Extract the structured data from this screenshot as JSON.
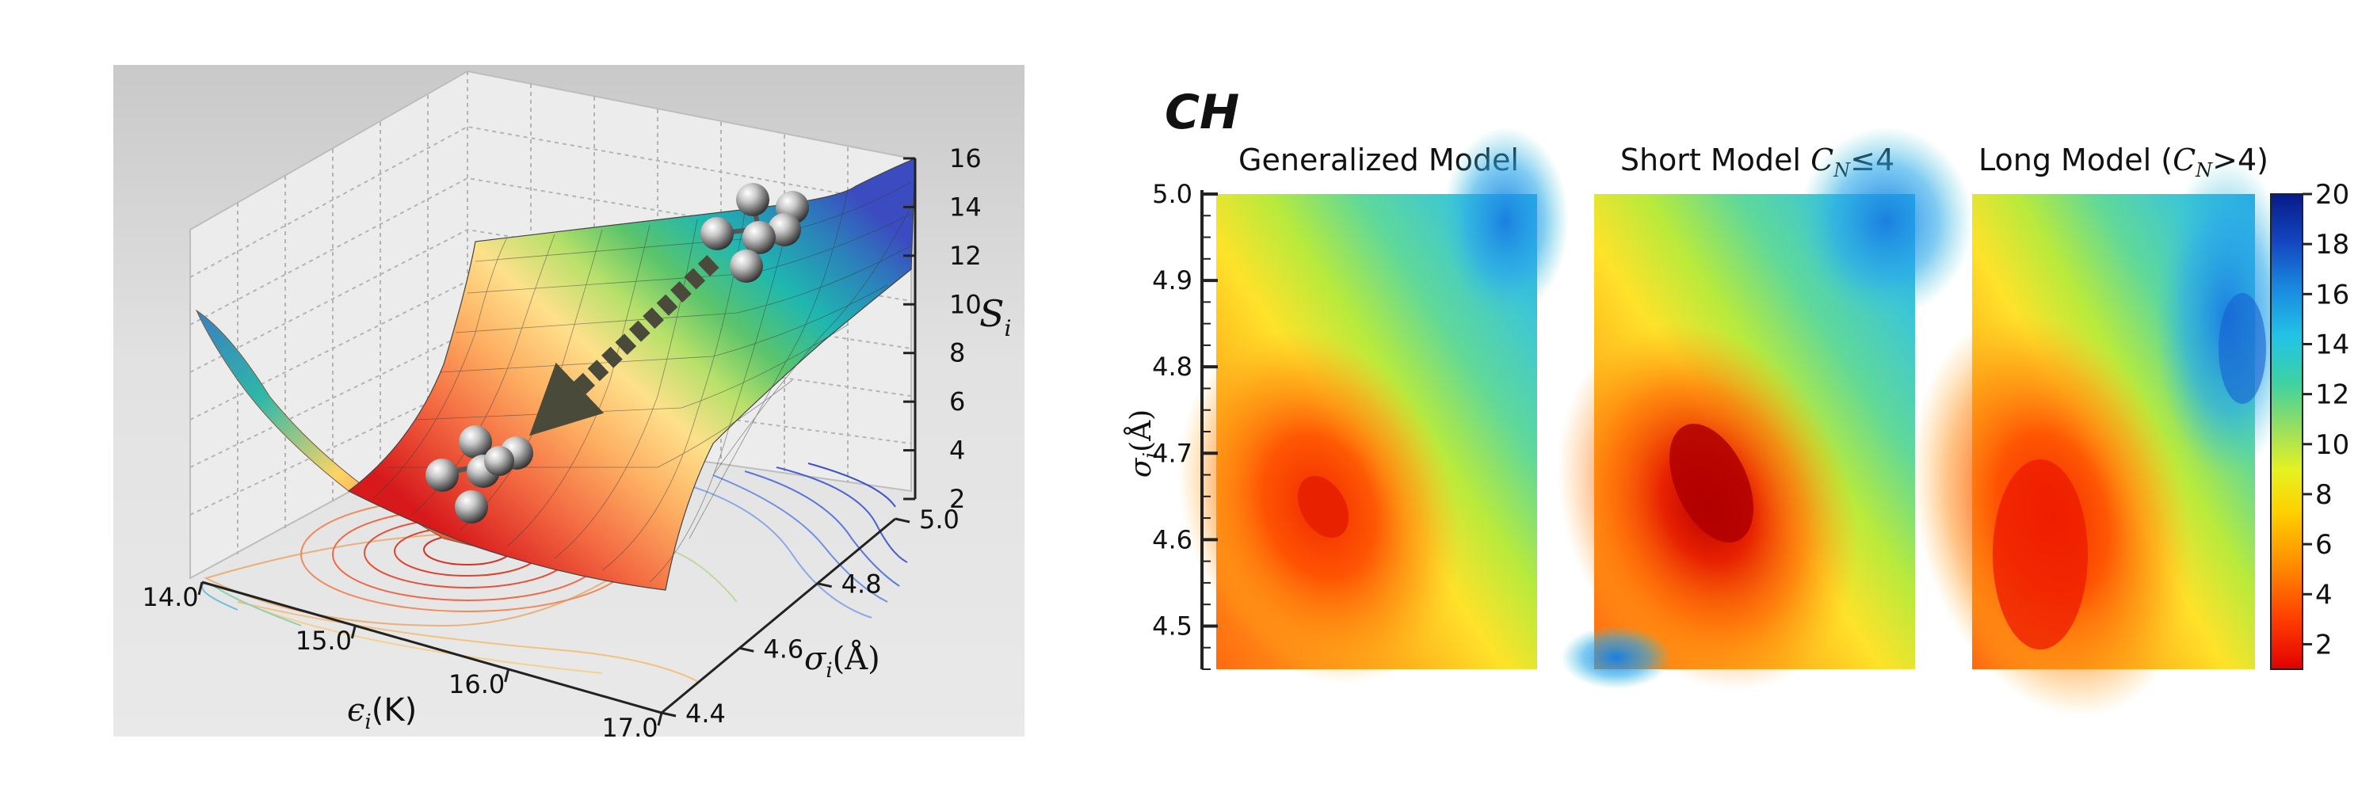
{
  "surface": {
    "x_label_sym": "ϵ",
    "x_label_sub": "i",
    "x_label_unit": "(K)",
    "y_label_sym": "σ",
    "y_label_sub": "i",
    "y_label_unit": "(Å)",
    "z_label_sym": "S",
    "z_label_sub": "i",
    "x_ticks": [
      "14.0",
      "15.0",
      "16.0",
      "17.0"
    ],
    "y_ticks": [
      "4.4",
      "4.6",
      "4.8",
      "5.0"
    ],
    "z_ticks": [
      "2",
      "4",
      "6",
      "8",
      "10",
      "12",
      "14",
      "16"
    ],
    "colormap": [
      "#d7191c",
      "#f46d43",
      "#fdae61",
      "#fee08b",
      "#d9ef8b",
      "#91cf60",
      "#1fb7b0",
      "#2b83ba",
      "#3b4cc0"
    ]
  },
  "heatmaps": {
    "group_title": "CH",
    "panels": [
      {
        "title_pre": "Generalized Model",
        "title_sym": "",
        "title_sub": "",
        "title_post": ""
      },
      {
        "title_pre": "Short Model ",
        "title_sym": "C",
        "title_sub": "N",
        "title_post": "≤4"
      },
      {
        "title_pre": "Long Model (",
        "title_sym": "C",
        "title_sub": "N",
        "title_post": ">4)"
      }
    ],
    "ylabel_sym": "σ",
    "ylabel_sub": "i",
    "ylabel_unit": "(Å)"
  },
  "chart_data": [
    {
      "type": "area",
      "subtype": "3d-surface",
      "xlabel": "ϵi(K)",
      "ylabel": "σi(Å)",
      "zlabel": "Si",
      "xlim": [
        14.0,
        17.0
      ],
      "ylim": [
        4.4,
        5.0
      ],
      "zlim": [
        2,
        16
      ],
      "x_ticks": [
        14.0,
        15.0,
        16.0,
        17.0
      ],
      "y_ticks": [
        4.4,
        4.6,
        4.8,
        5.0
      ],
      "z_ticks": [
        2,
        4,
        6,
        8,
        10,
        12,
        14,
        16
      ],
      "grid": true,
      "minimum": {
        "x": 15.6,
        "y": 4.68,
        "z": 2
      },
      "maximum": {
        "x": 17.0,
        "y": 5.0,
        "z": 15
      }
    },
    {
      "type": "heatmap",
      "title": "Generalized Model",
      "ylabel": "σi(Å)",
      "ylim": [
        4.45,
        5.0
      ],
      "y_ticks": [
        4.5,
        4.6,
        4.7,
        4.8,
        4.9,
        5.0
      ],
      "minimum": {
        "y": 4.64,
        "value": 2.5
      },
      "max_value": 13
    },
    {
      "type": "heatmap",
      "title": "Short Model CN≤4",
      "ylim": [
        4.45,
        5.0
      ],
      "minimum": {
        "y": 4.67,
        "value": 1.5
      },
      "max_value": 17
    },
    {
      "type": "heatmap",
      "title": "Long Model (CN>4)",
      "ylim": [
        4.45,
        5.0
      ],
      "minimum": {
        "y": 4.62,
        "value": 2.5
      },
      "max_value": 15
    },
    {
      "type": "colorbar",
      "ticks": [
        2,
        4,
        6,
        8,
        10,
        12,
        14,
        16,
        18,
        20
      ],
      "range": [
        1,
        20
      ]
    }
  ]
}
